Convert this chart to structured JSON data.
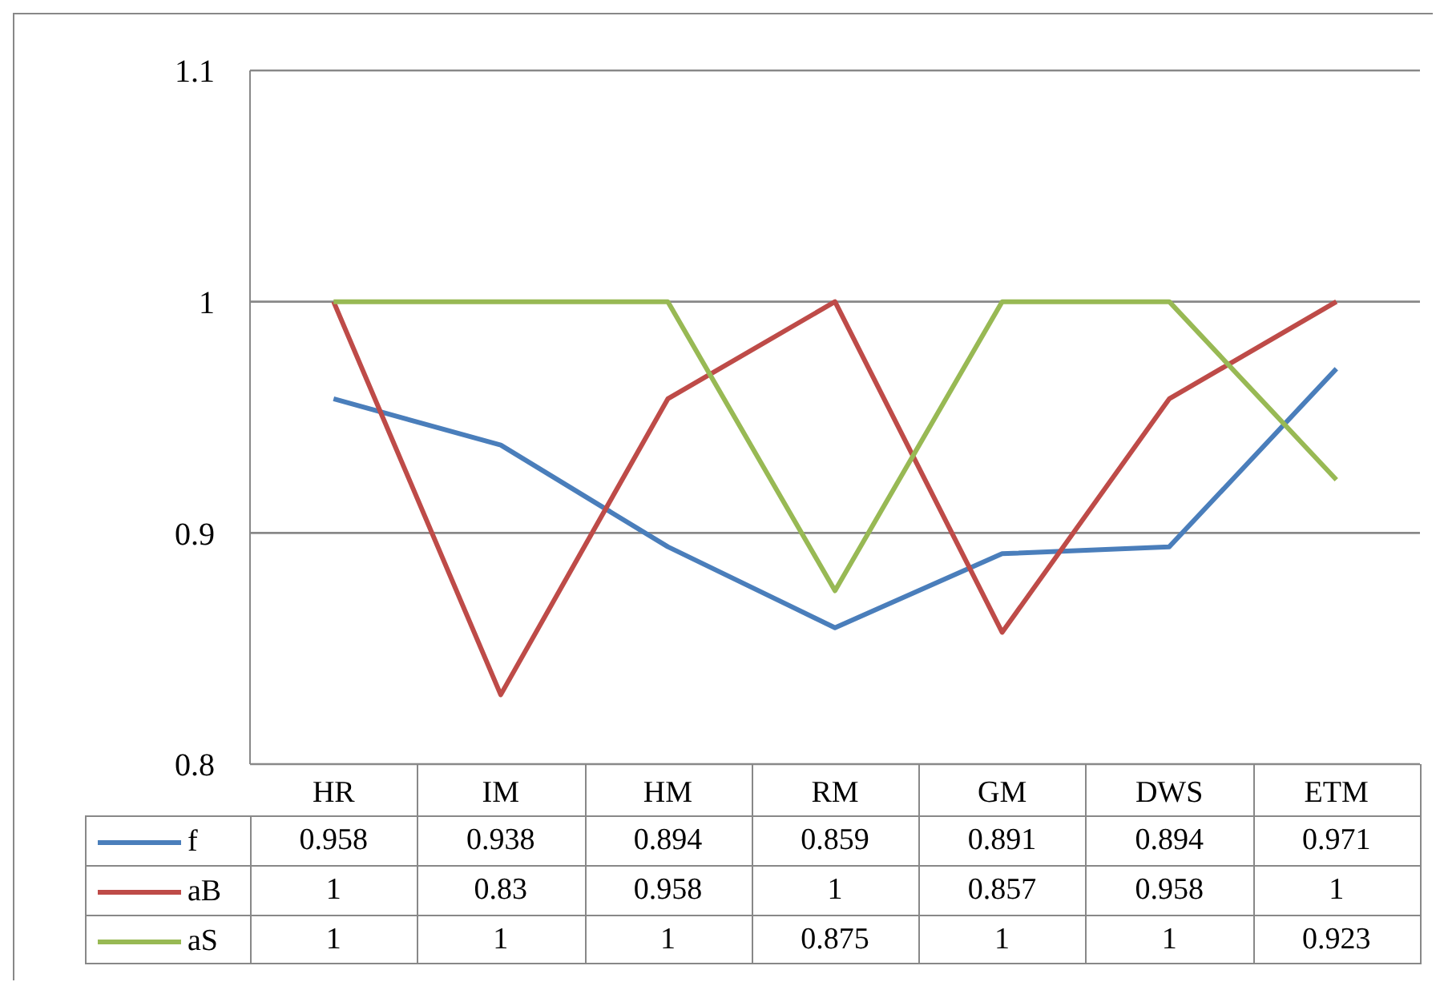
{
  "chart_data": {
    "type": "line",
    "categories": [
      "HR",
      "IM",
      "HM",
      "RM",
      "GM",
      "DWS",
      "ETM"
    ],
    "series": [
      {
        "name": "f",
        "color": "#4a7ebb",
        "values": [
          0.958,
          0.938,
          0.894,
          0.859,
          0.891,
          0.894,
          0.971
        ]
      },
      {
        "name": "aB",
        "color": "#be4b48",
        "values": [
          1,
          0.83,
          0.958,
          1,
          0.857,
          0.958,
          1
        ]
      },
      {
        "name": "aS",
        "color": "#98b954",
        "values": [
          1,
          1,
          1,
          0.875,
          1,
          1,
          0.923
        ]
      }
    ],
    "ylim": [
      0.8,
      1.1
    ],
    "yticks": [
      0.8,
      0.9,
      1,
      1.1
    ],
    "grid": "y",
    "legend": "bottom",
    "marker": "none",
    "line_style": "solid",
    "data_labels": true
  }
}
